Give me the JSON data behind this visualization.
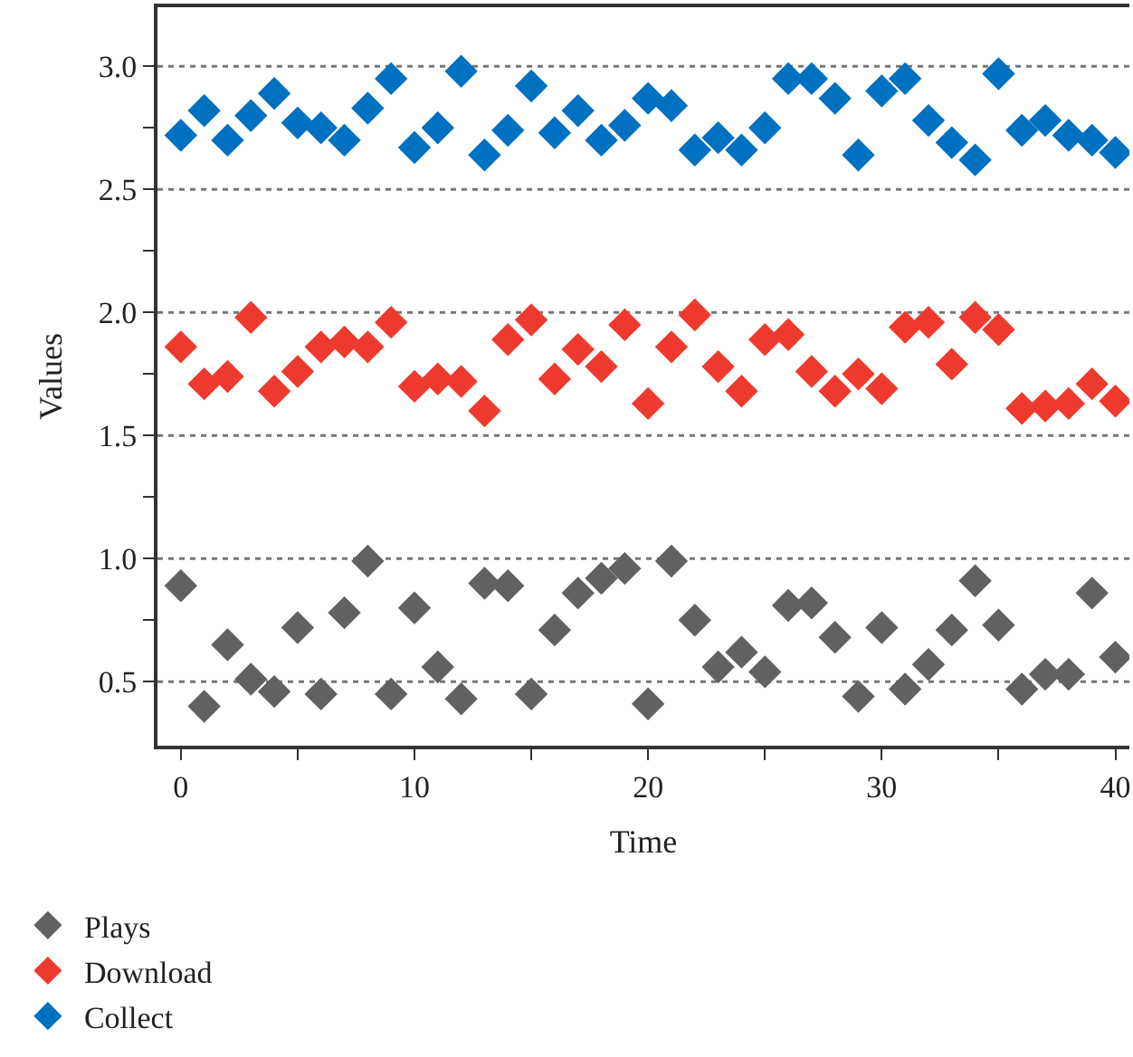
{
  "chart_data": {
    "type": "scatter",
    "xlabel": "Time",
    "ylabel": "Values",
    "x": [
      0,
      1,
      2,
      3,
      4,
      5,
      6,
      7,
      8,
      9,
      10,
      11,
      12,
      13,
      14,
      15,
      16,
      17,
      18,
      19,
      20,
      21,
      22,
      23,
      24,
      25,
      26,
      27,
      28,
      29,
      30,
      31,
      32,
      33,
      34,
      35,
      36,
      37,
      38,
      39,
      40
    ],
    "series": [
      {
        "name": "Plays",
        "color": "#616161",
        "values": [
          0.89,
          0.4,
          0.65,
          0.51,
          0.46,
          0.72,
          0.45,
          0.78,
          0.99,
          0.45,
          0.8,
          0.56,
          0.43,
          0.9,
          0.89,
          0.45,
          0.71,
          0.86,
          0.92,
          0.96,
          0.41,
          0.99,
          0.75,
          0.56,
          0.62,
          0.54,
          0.81,
          0.82,
          0.68,
          0.44,
          0.72,
          0.47,
          0.57,
          0.71,
          0.91,
          0.73,
          0.47,
          0.53,
          0.53,
          0.86,
          0.6
        ]
      },
      {
        "name": "Download",
        "color": "#ee3a2e",
        "values": [
          1.86,
          1.71,
          1.74,
          1.98,
          1.68,
          1.76,
          1.86,
          1.88,
          1.86,
          1.96,
          1.7,
          1.73,
          1.72,
          1.6,
          1.89,
          1.97,
          1.73,
          1.85,
          1.78,
          1.95,
          1.63,
          1.86,
          1.99,
          1.78,
          1.68,
          1.89,
          1.91,
          1.76,
          1.68,
          1.75,
          1.69,
          1.94,
          1.96,
          1.79,
          1.98,
          1.93,
          1.61,
          1.62,
          1.63,
          1.71,
          1.64
        ]
      },
      {
        "name": "Collect",
        "color": "#0070c0",
        "values": [
          2.72,
          2.82,
          2.7,
          2.8,
          2.89,
          2.77,
          2.75,
          2.7,
          2.83,
          2.95,
          2.67,
          2.75,
          2.98,
          2.64,
          2.74,
          2.92,
          2.73,
          2.82,
          2.7,
          2.76,
          2.87,
          2.84,
          2.66,
          2.71,
          2.66,
          2.75,
          2.95,
          2.95,
          2.87,
          2.64,
          2.9,
          2.95,
          2.78,
          2.69,
          2.62,
          2.97,
          2.74,
          2.78,
          2.72,
          2.7,
          2.65
        ]
      }
    ],
    "xlim": [
      -1,
      40.6
    ],
    "xticks": [
      0,
      {
        "value": 5,
        "label": null
      },
      10,
      {
        "value": 15,
        "label": null
      },
      20,
      {
        "value": 25,
        "label": null
      },
      30,
      {
        "value": 35,
        "label": null
      },
      40
    ],
    "ylim": [
      0.24,
      3.24
    ],
    "yticks": [
      {
        "value": 0.5,
        "label": "0.5"
      },
      {
        "value": 0.75,
        "label": null
      },
      {
        "value": 1,
        "label": "1.0"
      },
      {
        "value": 1.25,
        "label": null
      },
      {
        "value": 1.5,
        "label": "1.5"
      },
      {
        "value": 1.75,
        "label": null
      },
      {
        "value": 2,
        "label": "2.0"
      },
      {
        "value": 2.25,
        "label": null
      },
      {
        "value": 2.5,
        "label": "2.5"
      },
      {
        "value": 2.75,
        "label": null
      },
      {
        "value": 3,
        "label": "3.0"
      }
    ],
    "grid": "y",
    "legend": "bottom left",
    "marker": "diamond"
  }
}
